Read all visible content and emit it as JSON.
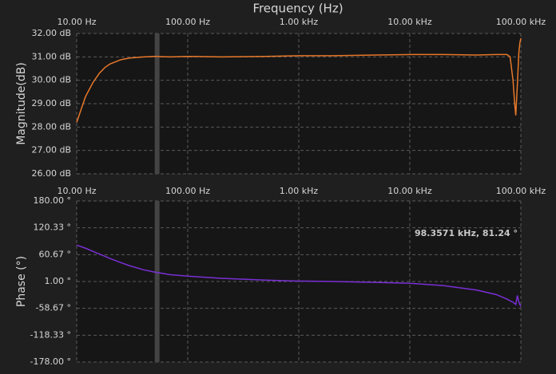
{
  "chart_data": [
    {
      "type": "line",
      "title": "Frequency (Hz)",
      "y_label": "Magnitude(dB)",
      "xscale": "log",
      "grid": true,
      "xlim": [
        10,
        100000
      ],
      "xticks": [
        {
          "value": 10,
          "label": "10.00 Hz"
        },
        {
          "value": 100,
          "label": "100.00 Hz"
        },
        {
          "value": 1000,
          "label": "1.00 kHz"
        },
        {
          "value": 10000,
          "label": "10.00 kHz"
        },
        {
          "value": 100000,
          "label": "100.00 kHz"
        }
      ],
      "ylim": [
        26,
        32
      ],
      "yticks": [
        {
          "value": 26,
          "label": "26.00 dB"
        },
        {
          "value": 27,
          "label": "27.00 dB"
        },
        {
          "value": 28,
          "label": "28.00 dB"
        },
        {
          "value": 29,
          "label": "29.00 dB"
        },
        {
          "value": 30,
          "label": "30.00 dB"
        },
        {
          "value": 31,
          "label": "31.00 dB"
        },
        {
          "value": 32,
          "label": "32.00 dB"
        }
      ],
      "cursor_x": 53,
      "x": [
        10,
        12,
        14,
        16,
        18,
        20,
        25,
        30,
        40,
        50,
        70,
        100,
        200,
        500,
        1000,
        2000,
        5000,
        10000,
        20000,
        40000,
        60000,
        75000,
        80000,
        85000,
        88000,
        90000,
        93000,
        96000,
        98000,
        100000
      ],
      "series": [
        {
          "name": "Magnitude",
          "color": "#e8782a",
          "values": [
            28.2,
            29.3,
            29.9,
            30.3,
            30.55,
            30.7,
            30.88,
            30.95,
            31.0,
            31.02,
            31.0,
            31.02,
            31.0,
            31.02,
            31.05,
            31.05,
            31.08,
            31.1,
            31.1,
            31.08,
            31.1,
            31.1,
            31.0,
            30.0,
            29.0,
            28.5,
            29.8,
            31.2,
            31.6,
            31.8
          ]
        }
      ]
    },
    {
      "type": "line",
      "y_label": "Phase (°)",
      "xscale": "log",
      "grid": true,
      "annotation": "98.3571 kHz, 81.24 °",
      "xlim": [
        10,
        100000
      ],
      "xticks": [
        {
          "value": 10,
          "label": "10.00 Hz"
        },
        {
          "value": 100,
          "label": "100.00 Hz"
        },
        {
          "value": 1000,
          "label": "1.00 kHz"
        },
        {
          "value": 10000,
          "label": "10.00 kHz"
        },
        {
          "value": 100000,
          "label": "100.00 kHz"
        }
      ],
      "ylim": [
        -178,
        180
      ],
      "yticks": [
        {
          "value": -178,
          "label": "-178.00 °"
        },
        {
          "value": -118.33,
          "label": "-118.33 °"
        },
        {
          "value": -58.67,
          "label": "-58.67 °"
        },
        {
          "value": 1,
          "label": "1.00 °"
        },
        {
          "value": 60.67,
          "label": "60.67 °"
        },
        {
          "value": 120.33,
          "label": "120.33 °"
        },
        {
          "value": 180,
          "label": "180.00 °"
        }
      ],
      "cursor_x": 53,
      "x": [
        10,
        12,
        14,
        16,
        18,
        20,
        25,
        30,
        40,
        50,
        70,
        100,
        200,
        500,
        1000,
        2000,
        5000,
        10000,
        20000,
        40000,
        60000,
        75000,
        80000,
        85000,
        88000,
        90000,
        93000,
        96000,
        98000,
        100000
      ],
      "series": [
        {
          "name": "Phase",
          "color": "#7a2fd6",
          "values": [
            82,
            75,
            68,
            62,
            57,
            52,
            43,
            36,
            27,
            22,
            16,
            13,
            8,
            4,
            2,
            1,
            -1,
            -3,
            -8,
            -18,
            -28,
            -38,
            -42,
            -45,
            -48,
            -50,
            -30,
            -45,
            -50,
            -55
          ]
        }
      ]
    }
  ]
}
